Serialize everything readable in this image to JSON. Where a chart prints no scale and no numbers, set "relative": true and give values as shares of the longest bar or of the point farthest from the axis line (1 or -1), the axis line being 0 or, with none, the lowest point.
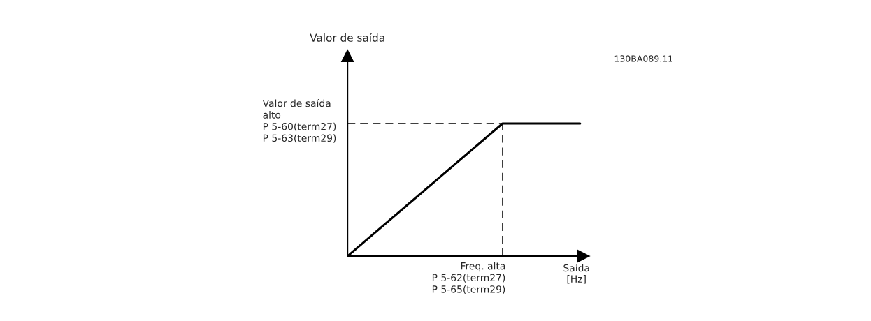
{
  "chart_data": {
    "type": "line",
    "relative": true,
    "xlabel": "Saída\n[Hz]",
    "categories": [
      null,
      null,
      null,
      null
    ],
    "series": [
      {
        "color": "#000000",
        "values": [
          0,
          0.5,
          1,
          1
        ]
      }
    ],
    "ref_lines": [
      {
        "axis": "y",
        "value": 1,
        "line_style": "dashed",
        "color": "#000000"
      }
    ],
    "annotations": [
      "Valor de saída",
      "Valor de saída\nalto\nP 5-60(term27)\nP 5-63(term29)",
      "Freq. alta\nP 5-62(term27)\nP 5-65(term29)",
      "130BA089.11"
    ]
  }
}
